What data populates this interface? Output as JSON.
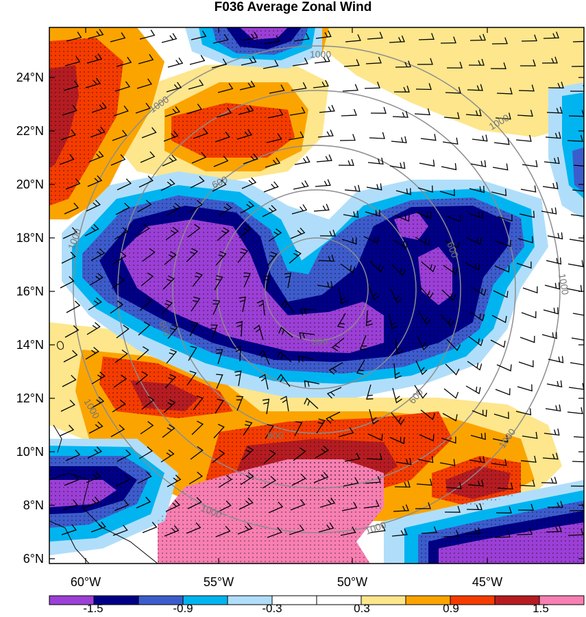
{
  "title": "F036 Average Zonal Wind",
  "lat_labels": [
    "24°N",
    "22°N",
    "20°N",
    "18°N",
    "16°N",
    "14°N",
    "12°N",
    "10°N",
    "8°N",
    "6°N"
  ],
  "lon_labels": [
    "60°W",
    "55°W",
    "50°W",
    "45°W"
  ],
  "range_ring_labels": [
    "200",
    "600",
    "1000"
  ],
  "colorbar": {
    "colors": [
      "#9b3fd6",
      "#000086",
      "#3d5ccc",
      "#00b4f0",
      "#b0defa",
      "#ffffff",
      "#ffffff",
      "#fde68c",
      "#fba400",
      "#f53c00",
      "#b51c22",
      "#f77fb2"
    ],
    "tick_labels": [
      "-1.5",
      "-0.9",
      "-0.3",
      "0.3",
      "0.9",
      "1.5"
    ]
  }
}
